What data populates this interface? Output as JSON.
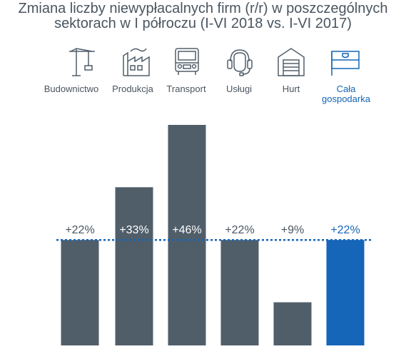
{
  "title_lines": [
    "Zmiana liczby niewypłacalnych firm (r/r) w poszczególnych",
    "sektorach w I półroczu (I-VI 2018 vs. I-VI 2017)"
  ],
  "colors": {
    "bar": "#505e6a",
    "accent": "#1565b8",
    "text": "#4a5560"
  },
  "icons": [
    "crane-icon",
    "factory-icon",
    "truck-icon",
    "headset-icon",
    "warehouse-icon",
    "flag-icon"
  ],
  "chart_data": {
    "type": "bar",
    "title": "Zmiana liczby niewypłacalnych firm (r/r) w poszczególnych sektorach w I półroczu (I-VI 2018 vs. I-VI 2017)",
    "categories": [
      "Budownictwo",
      "Produkcja",
      "Transport",
      "Usługi",
      "Hurt",
      "Cała gospodarka"
    ],
    "category_lines": [
      [
        "Budownictwo"
      ],
      [
        "Produkcja"
      ],
      [
        "Transport"
      ],
      [
        "Usługi"
      ],
      [
        "Hurt"
      ],
      [
        "Cała",
        "gospodarka"
      ]
    ],
    "values": [
      22,
      33,
      46,
      22,
      9,
      22
    ],
    "value_labels": [
      "+22%",
      "+33%",
      "+46%",
      "+22%",
      "+9%",
      "+22%"
    ],
    "highlight_index": 5,
    "reference_line": 22,
    "ylim": [
      0,
      46
    ],
    "grid": false,
    "xlabel": "",
    "ylabel": ""
  }
}
